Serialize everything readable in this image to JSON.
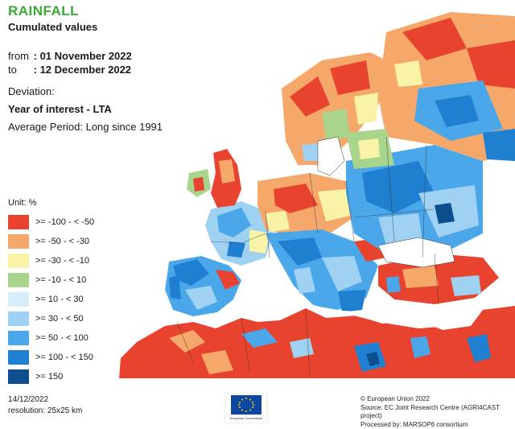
{
  "header": {
    "title": "RAINFALL",
    "subtitle": "Cumulated values",
    "from_label": "from",
    "from_value": ": 01 November 2022",
    "to_label": "to",
    "to_value": ": 12 December 2022",
    "deviation_label": "Deviation:",
    "year_label": "Year of interest - LTA",
    "average_period": "Average Period: Long since 1991"
  },
  "legend": {
    "unit": "Unit:  %",
    "items": [
      {
        "label": ">= -100 - < -50",
        "color": "#e8432f"
      },
      {
        "label": ">= -50 - < -30",
        "color": "#f6a86a"
      },
      {
        "label": ">= -30 - < -10",
        "color": "#f8f3a6"
      },
      {
        "label": ">= -10 - < 10",
        "color": "#a8d48c"
      },
      {
        "label": ">= 10 - < 30",
        "color": "#d6eefa"
      },
      {
        "label": ">= 30 - < 50",
        "color": "#9ed1f2"
      },
      {
        "label": ">= 50 - < 100",
        "color": "#4aa8ea"
      },
      {
        "label": ">= 100 - < 150",
        "color": "#1f7fd1"
      },
      {
        "label": ">= 150",
        "color": "#0d4f8e"
      }
    ]
  },
  "footer": {
    "date": "14/12/2022",
    "resolution": "resolution: 25x25 km",
    "copyright": "© European Union 2022",
    "source": "Source: EC Joint Research Centre (AGRI4CAST project)",
    "processed": "Processed by: MARSOP6 consortium",
    "logo_text": "European Commission"
  },
  "colors": {
    "title": "#3aa935",
    "sea": "#ffffff",
    "border": "#333333"
  }
}
